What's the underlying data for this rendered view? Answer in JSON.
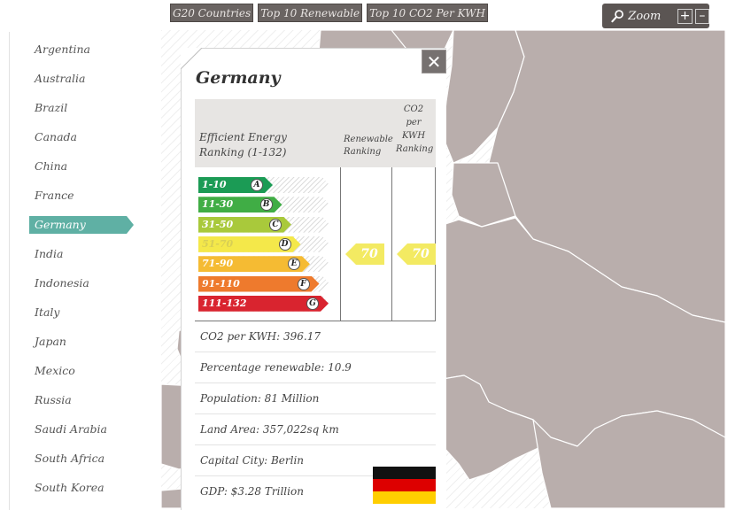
{
  "filters": [
    "G20 Countries",
    "Top 10 Renewable",
    "Top 10 CO2 Per KWH"
  ],
  "zoom": {
    "label": "Zoom",
    "plus": "+",
    "minus": "–"
  },
  "sidebar": {
    "items": [
      "Argentina",
      "Australia",
      "Brazil",
      "Canada",
      "China",
      "France",
      "Germany",
      "India",
      "Indonesia",
      "Italy",
      "Japan",
      "Mexico",
      "Russia",
      "Saudi Arabia",
      "South Africa",
      "South Korea"
    ],
    "active": "Germany"
  },
  "panel": {
    "title": "Germany",
    "close": "✕",
    "table": {
      "head_main": "Efficient Energy Ranking (1-132)",
      "head_renewable": "Renewable Ranking",
      "head_co2": "CO2 per KWH Ranking"
    },
    "bands": [
      {
        "range": "1-10",
        "letter": "A",
        "color": "#1b9b55"
      },
      {
        "range": "11-30",
        "letter": "B",
        "color": "#40ad45"
      },
      {
        "range": "31-50",
        "letter": "C",
        "color": "#a9c93b"
      },
      {
        "range": "51-70",
        "letter": "D",
        "color": "#f4e84a"
      },
      {
        "range": "71-90",
        "letter": "E",
        "color": "#f5bb33"
      },
      {
        "range": "91-110",
        "letter": "F",
        "color": "#ee7a2d"
      },
      {
        "range": "111-132",
        "letter": "G",
        "color": "#d9242f"
      }
    ],
    "renewable_rank": "70",
    "co2_rank": "70",
    "facts": [
      "CO2 per KWH: 396.17",
      "Percentage renewable: 10.9",
      "Population: 81 Million",
      "Land Area: 357,022sq km",
      "Capital City: Berlin",
      "GDP: $3.28 Trillion"
    ],
    "flag_colors": [
      "#111111",
      "#dd0000",
      "#ffce00"
    ]
  }
}
